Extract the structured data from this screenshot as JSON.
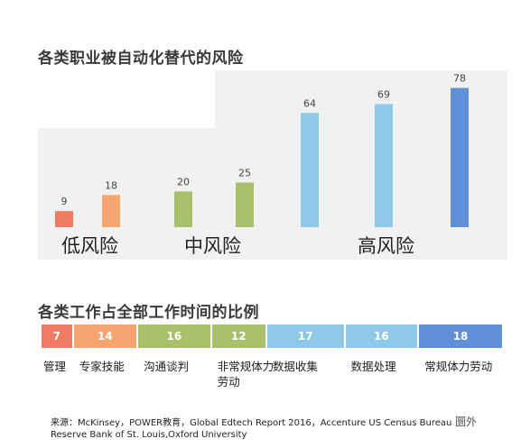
{
  "chart_data": [
    {
      "type": "bar",
      "title": "各类职业被自动化替代的风险",
      "categories": [
        "管理",
        "专家技能",
        "沟通谈判",
        "非常规体力劳动",
        "数据收集",
        "数据处理",
        "常规体力劳动"
      ],
      "values": [
        9,
        18,
        20,
        25,
        64,
        69,
        78
      ],
      "groups": [
        {
          "label": "低风险",
          "members": [
            0,
            1
          ]
        },
        {
          "label": "中风险",
          "members": [
            2,
            3
          ]
        },
        {
          "label": "高风险",
          "members": [
            4,
            5,
            6
          ]
        }
      ],
      "colors": [
        "#f07a62",
        "#f5a56f",
        "#a8c06a",
        "#a8c06a",
        "#8fc9e8",
        "#8fc9e8",
        "#5f8fd6"
      ],
      "ylim": [
        0,
        80
      ],
      "grid": false
    },
    {
      "type": "bar",
      "title": "各类工作占全部工作时间的比例",
      "categories": [
        "管理",
        "专家技能",
        "沟通谈判",
        "非常规体力劳动",
        "数据收集",
        "数据处理",
        "常规体力劳动"
      ],
      "values": [
        7,
        14,
        16,
        12,
        17,
        16,
        18
      ],
      "stacked": true,
      "colors": [
        "#f07a62",
        "#f5a56f",
        "#a8c06a",
        "#a8c06a",
        "#8fc9e8",
        "#8fc9e8",
        "#5f8fd6"
      ]
    }
  ],
  "labels": {
    "stack_labels": [
      "管理",
      "专家技能",
      "沟通谈判",
      "非常规体力\n劳动",
      "数据收集",
      "数据处理",
      "常规体力劳动"
    ]
  },
  "source": {
    "line1": "来源：McKinsey，POWER教育，Global Edtech Report 2016，Accenture US Census Bureau，",
    "line2": "Reserve Bank of St. Louis,Oxford University"
  },
  "watermark": "圜外"
}
